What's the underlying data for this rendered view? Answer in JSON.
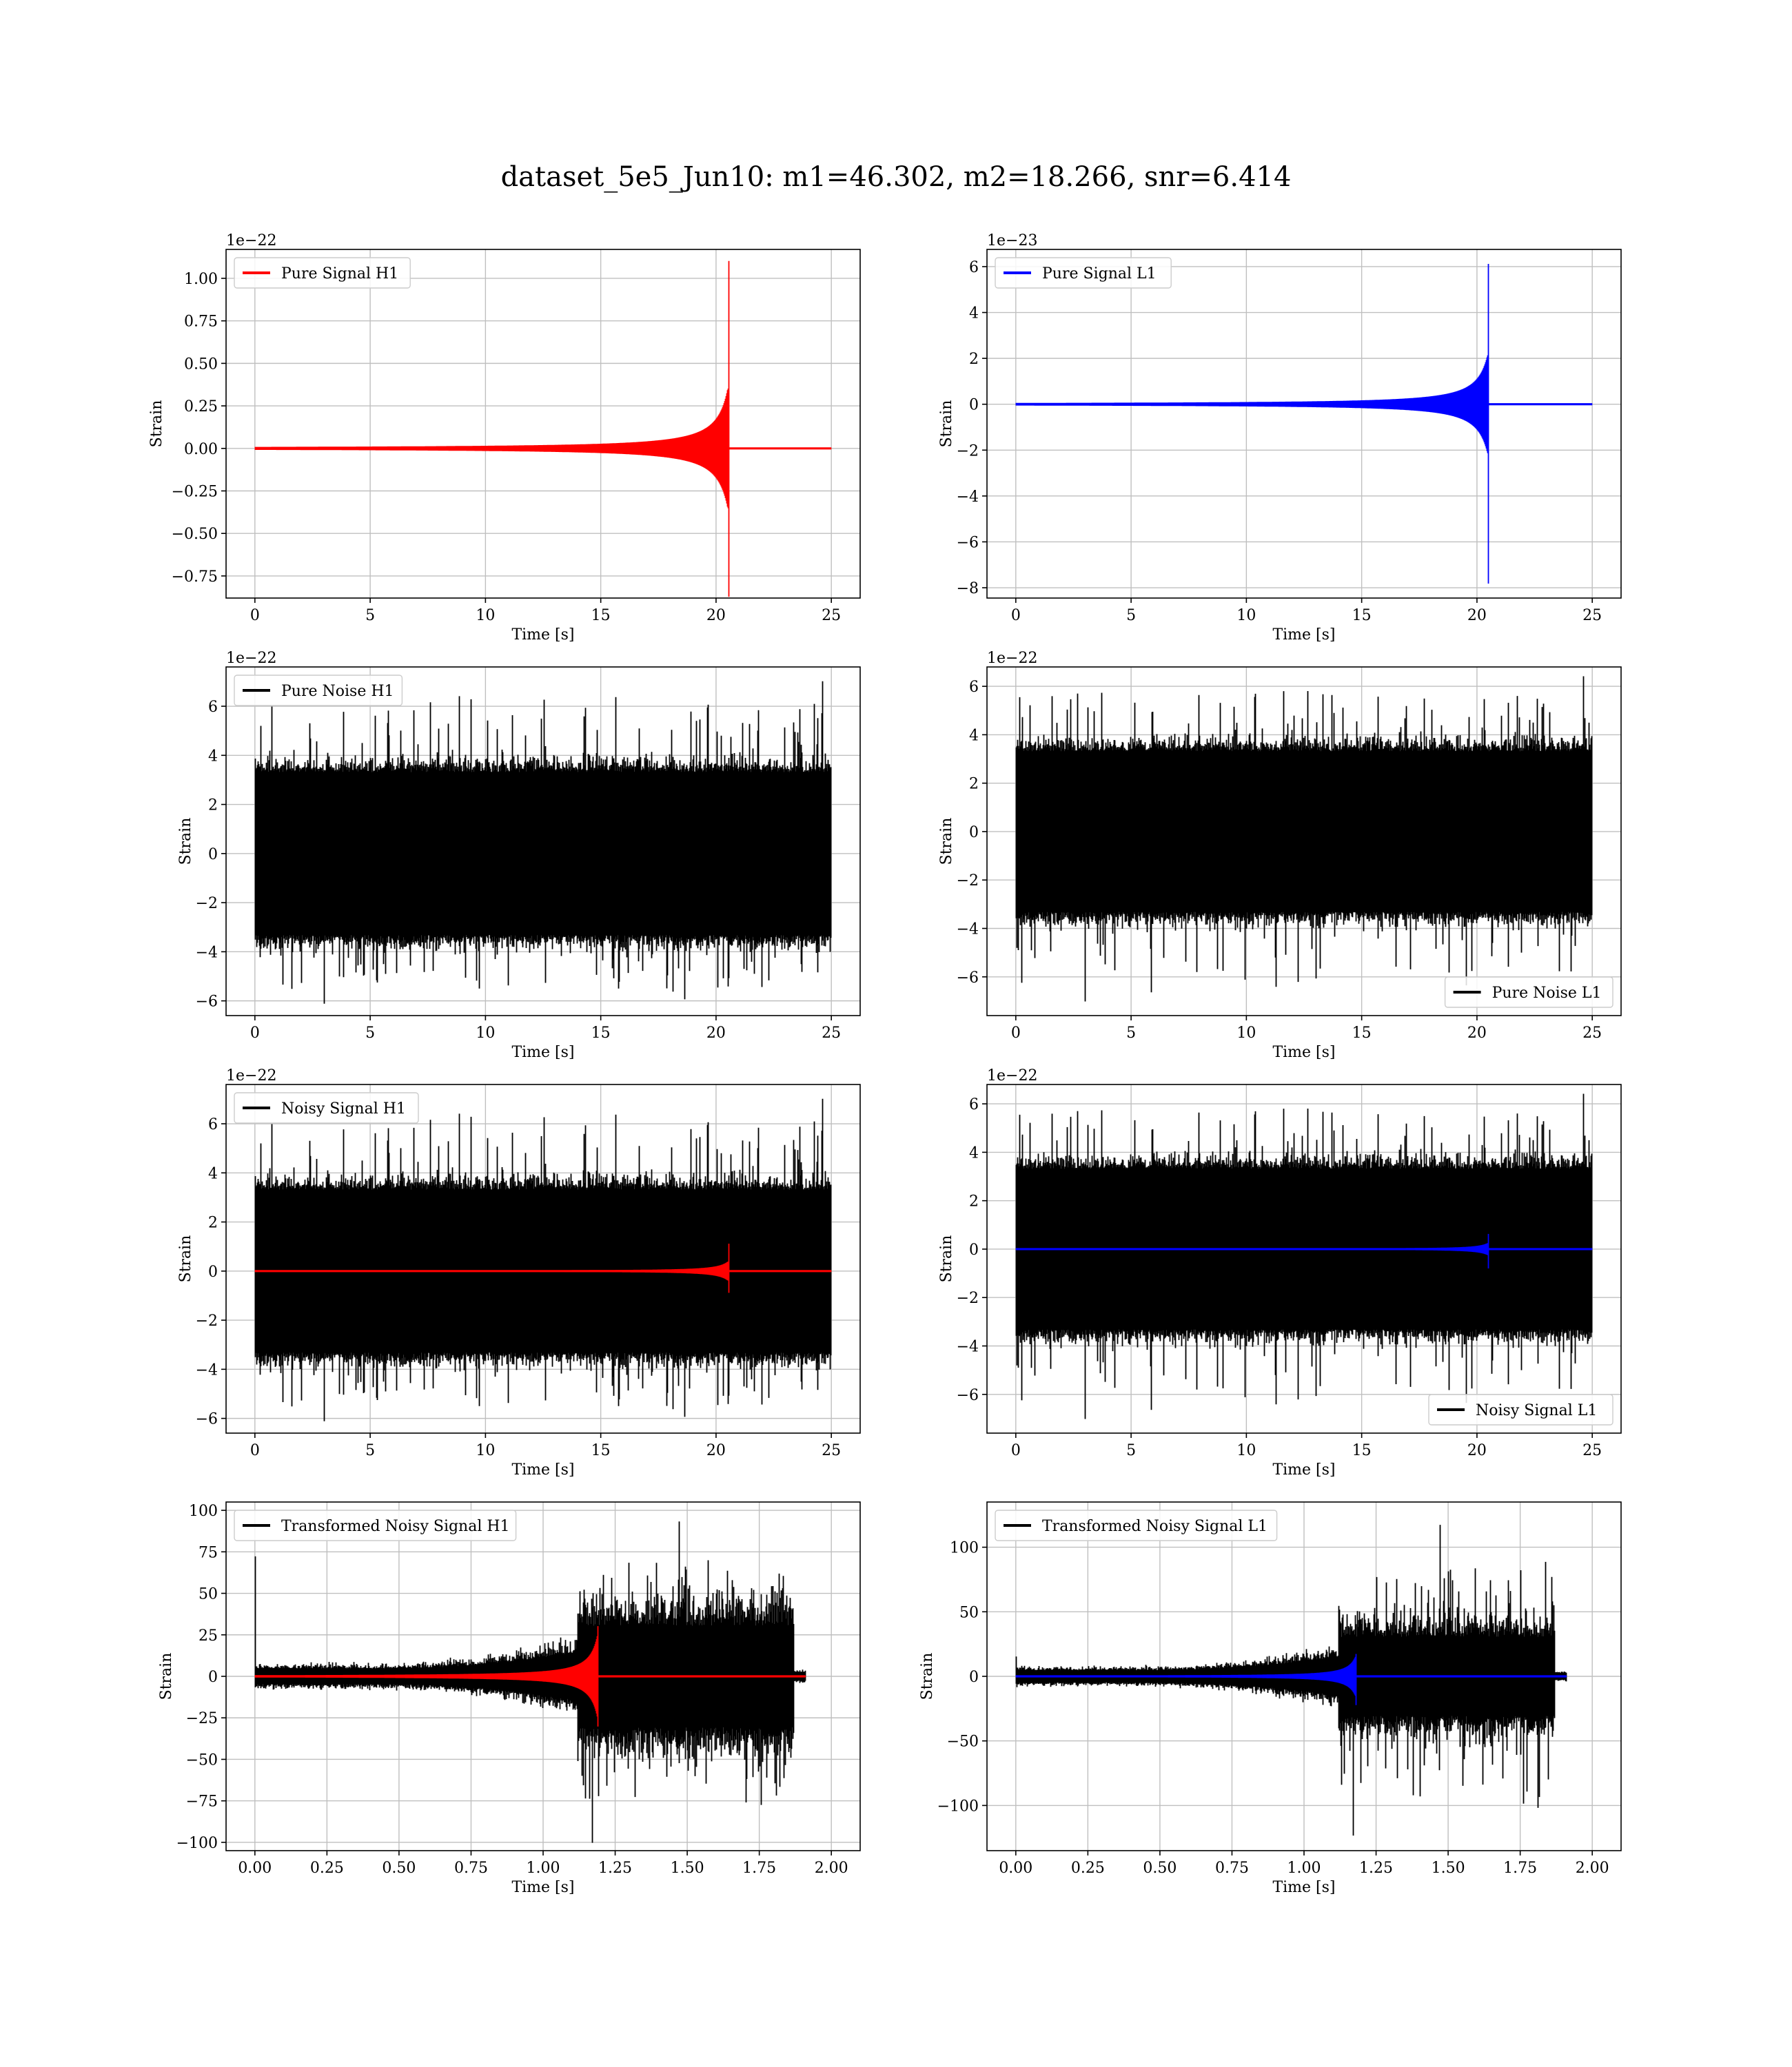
{
  "title": "dataset_5e5_Jun10: m1=46.302, m2=18.266, snr=6.414",
  "chart_data": [
    {
      "type": "line",
      "id": "pure-signal-h1",
      "xlabel": "Time [s]",
      "ylabel": "Strain",
      "offset_label": "1e−22",
      "xlim": [
        -1.25,
        26.25
      ],
      "ylim": [
        -0.88,
        1.17
      ],
      "xticks": [
        0,
        5,
        10,
        15,
        20,
        25
      ],
      "xtick_labels": [
        "0",
        "5",
        "10",
        "15",
        "20",
        "25"
      ],
      "yticks": [
        -0.75,
        -0.5,
        -0.25,
        0,
        0.25,
        0.5,
        0.75,
        1.0
      ],
      "ytick_labels": [
        "−0.75",
        "−0.50",
        "−0.25",
        "0.00",
        "0.25",
        "0.50",
        "0.75",
        "1.00"
      ],
      "grid": true,
      "legend_loc": "upper-left",
      "series": [
        {
          "name": "Pure Signal H1",
          "color": "#ff0000",
          "kind": "chirp",
          "t0": 0,
          "t1": 25,
          "merger": 20.55,
          "max_amp": 0.38,
          "peak_pos": 1.1,
          "peak_neg": -0.87
        }
      ]
    },
    {
      "type": "line",
      "id": "pure-signal-l1",
      "xlabel": "Time [s]",
      "ylabel": "Strain",
      "offset_label": "1e−23",
      "xlim": [
        -1.25,
        26.25
      ],
      "ylim": [
        -8.45,
        6.75
      ],
      "xticks": [
        0,
        5,
        10,
        15,
        20,
        25
      ],
      "xtick_labels": [
        "0",
        "5",
        "10",
        "15",
        "20",
        "25"
      ],
      "yticks": [
        -8,
        -6,
        -4,
        -2,
        0,
        2,
        4,
        6
      ],
      "ytick_labels": [
        "−8",
        "−6",
        "−4",
        "−2",
        "0",
        "2",
        "4",
        "6"
      ],
      "grid": true,
      "legend_loc": "upper-left",
      "series": [
        {
          "name": "Pure Signal L1",
          "color": "#0000ff",
          "kind": "chirp",
          "t0": 0,
          "t1": 25,
          "merger": 20.5,
          "max_amp": 2.3,
          "peak_pos": 6.1,
          "peak_neg": -7.8
        }
      ]
    },
    {
      "type": "line",
      "id": "pure-noise-h1",
      "xlabel": "Time [s]",
      "ylabel": "Strain",
      "offset_label": "1e−22",
      "xlim": [
        -1.25,
        26.25
      ],
      "ylim": [
        -6.6,
        7.6
      ],
      "xticks": [
        0,
        5,
        10,
        15,
        20,
        25
      ],
      "xtick_labels": [
        "0",
        "5",
        "10",
        "15",
        "20",
        "25"
      ],
      "yticks": [
        -6,
        -4,
        -2,
        0,
        2,
        4,
        6
      ],
      "ytick_labels": [
        "−6",
        "−4",
        "−2",
        "0",
        "2",
        "4",
        "6"
      ],
      "grid": true,
      "legend_loc": "upper-left",
      "series": [
        {
          "name": "Pure Noise H1",
          "color": "#000000",
          "kind": "noise",
          "t0": 0,
          "t1": 25,
          "band": 3.3,
          "spike_max": 7.0,
          "spike_min": -6.1,
          "seed": 11
        }
      ]
    },
    {
      "type": "line",
      "id": "pure-noise-l1",
      "xlabel": "Time [s]",
      "ylabel": "Strain",
      "offset_label": "1e−22",
      "xlim": [
        -1.25,
        26.25
      ],
      "ylim": [
        -7.6,
        6.8
      ],
      "xticks": [
        0,
        5,
        10,
        15,
        20,
        25
      ],
      "xtick_labels": [
        "0",
        "5",
        "10",
        "15",
        "20",
        "25"
      ],
      "yticks": [
        -6,
        -4,
        -2,
        0,
        2,
        4,
        6
      ],
      "ytick_labels": [
        "−6",
        "−4",
        "−2",
        "0",
        "2",
        "4",
        "6"
      ],
      "grid": true,
      "legend_loc": "lower-right",
      "series": [
        {
          "name": "Pure Noise L1",
          "color": "#000000",
          "kind": "noise",
          "t0": 0,
          "t1": 25,
          "band": 3.3,
          "spike_max": 6.4,
          "spike_min": -7.0,
          "seed": 23
        }
      ]
    },
    {
      "type": "line",
      "id": "noisy-signal-h1",
      "xlabel": "Time [s]",
      "ylabel": "Strain",
      "offset_label": "1e−22",
      "xlim": [
        -1.25,
        26.25
      ],
      "ylim": [
        -6.6,
        7.6
      ],
      "xticks": [
        0,
        5,
        10,
        15,
        20,
        25
      ],
      "xtick_labels": [
        "0",
        "5",
        "10",
        "15",
        "20",
        "25"
      ],
      "yticks": [
        -6,
        -4,
        -2,
        0,
        2,
        4,
        6
      ],
      "ytick_labels": [
        "−6",
        "−4",
        "−2",
        "0",
        "2",
        "4",
        "6"
      ],
      "grid": true,
      "legend_loc": "upper-left",
      "series": [
        {
          "name": "Noisy Signal H1",
          "color": "#000000",
          "kind": "noise",
          "t0": 0,
          "t1": 25,
          "band": 3.3,
          "spike_max": 7.0,
          "spike_min": -6.1,
          "seed": 11
        },
        {
          "name": "",
          "color": "#ff0000",
          "kind": "chirp",
          "t0": 0,
          "t1": 25,
          "merger": 20.55,
          "max_amp": 0.4,
          "peak_pos": 1.1,
          "peak_neg": -0.87
        }
      ]
    },
    {
      "type": "line",
      "id": "noisy-signal-l1",
      "xlabel": "Time [s]",
      "ylabel": "Strain",
      "offset_label": "1e−22",
      "xlim": [
        -1.25,
        26.25
      ],
      "ylim": [
        -7.6,
        6.8
      ],
      "xticks": [
        0,
        5,
        10,
        15,
        20,
        25
      ],
      "xtick_labels": [
        "0",
        "5",
        "10",
        "15",
        "20",
        "25"
      ],
      "yticks": [
        -6,
        -4,
        -2,
        0,
        2,
        4,
        6
      ],
      "ytick_labels": [
        "−6",
        "−4",
        "−2",
        "0",
        "2",
        "4",
        "6"
      ],
      "grid": true,
      "legend_loc": "lower-right",
      "series": [
        {
          "name": "Noisy Signal L1",
          "color": "#000000",
          "kind": "noise",
          "t0": 0,
          "t1": 25,
          "band": 3.3,
          "spike_max": 6.4,
          "spike_min": -7.0,
          "seed": 23
        },
        {
          "name": "",
          "color": "#0000ff",
          "kind": "chirp",
          "t0": 0,
          "t1": 25,
          "merger": 20.5,
          "max_amp": 0.25,
          "peak_pos": 0.61,
          "peak_neg": -0.78
        }
      ]
    },
    {
      "type": "line",
      "id": "transformed-noisy-signal-h1",
      "xlabel": "Time [s]",
      "ylabel": "Strain",
      "offset_label": "",
      "xlim": [
        -0.1,
        2.1
      ],
      "ylim": [
        -105,
        105
      ],
      "xticks": [
        0,
        0.25,
        0.5,
        0.75,
        1.0,
        1.25,
        1.5,
        1.75,
        2.0
      ],
      "xtick_labels": [
        "0.00",
        "0.25",
        "0.50",
        "0.75",
        "1.00",
        "1.25",
        "1.50",
        "1.75",
        "2.00"
      ],
      "yticks": [
        -100,
        -75,
        -50,
        -25,
        0,
        25,
        50,
        75,
        100
      ],
      "ytick_labels": [
        "−100",
        "−75",
        "−50",
        "−25",
        "0",
        "25",
        "50",
        "75",
        "100"
      ],
      "grid": true,
      "legend_loc": "upper-left",
      "series": [
        {
          "name": "Transformed Noisy Signal H1",
          "color": "#000000",
          "kind": "whitened",
          "t0": 0,
          "t1": 1.91,
          "onset": 1.12,
          "cutoff": 1.87,
          "pre_band": 8,
          "post_band": 55,
          "spike_max": 93,
          "spike_min": -100,
          "start_spike": 72,
          "seed": 41
        },
        {
          "name": "",
          "color": "#ff0000",
          "kind": "chirp",
          "t0": 0,
          "t1": 1.91,
          "merger": 1.19,
          "max_amp": 26,
          "peak_pos": 30,
          "peak_neg": -30
        }
      ]
    },
    {
      "type": "line",
      "id": "transformed-noisy-signal-l1",
      "xlabel": "Time [s]",
      "ylabel": "Strain",
      "offset_label": "",
      "xlim": [
        -0.1,
        2.1
      ],
      "ylim": [
        -135,
        135
      ],
      "xticks": [
        0,
        0.25,
        0.5,
        0.75,
        1.0,
        1.25,
        1.5,
        1.75,
        2.0
      ],
      "xtick_labels": [
        "0.00",
        "0.25",
        "0.50",
        "0.75",
        "1.00",
        "1.25",
        "1.50",
        "1.75",
        "2.00"
      ],
      "yticks": [
        -100,
        -50,
        0,
        50,
        100
      ],
      "ytick_labels": [
        "−100",
        "−50",
        "0",
        "50",
        "100"
      ],
      "grid": true,
      "legend_loc": "upper-left",
      "series": [
        {
          "name": "Transformed Noisy Signal L1",
          "color": "#000000",
          "kind": "whitened",
          "t0": 0,
          "t1": 1.91,
          "onset": 1.12,
          "cutoff": 1.87,
          "pre_band": 8,
          "post_band": 55,
          "spike_max": 117,
          "spike_min": -123,
          "start_spike": 15,
          "seed": 57
        },
        {
          "name": "",
          "color": "#0000ff",
          "kind": "chirp",
          "t0": 0,
          "t1": 1.91,
          "merger": 1.18,
          "max_amp": 16,
          "peak_pos": 17,
          "peak_neg": -22
        }
      ]
    }
  ]
}
